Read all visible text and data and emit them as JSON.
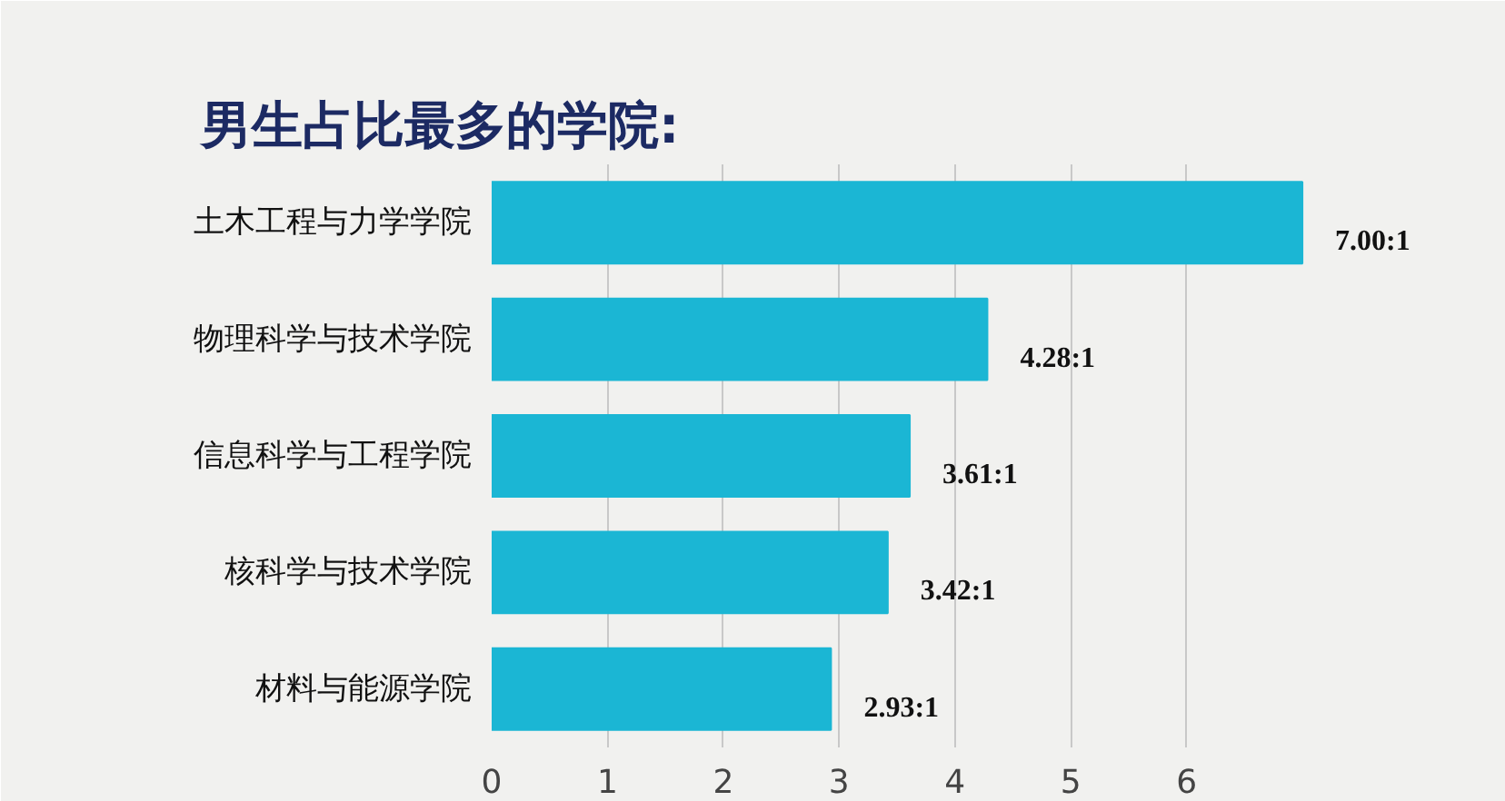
{
  "chart_data": {
    "type": "bar",
    "orientation": "horizontal",
    "title": "男生占比最多的学院:",
    "categories": [
      "土木工程与力学学院",
      "物理科学与技术学院",
      "信息科学与工程学院",
      "核科学与技术学院",
      "材料与能源学院"
    ],
    "values": [
      7.0,
      4.28,
      3.61,
      3.42,
      2.93
    ],
    "value_labels": [
      "7.00:1",
      "4.28:1",
      "3.61:1",
      "3.42:1",
      "2.93:1"
    ],
    "color": "#1bb6d4",
    "xlim": [
      0,
      8.6
    ],
    "xticks": [
      0,
      1,
      2,
      3,
      4,
      5,
      6
    ],
    "grid": "x"
  }
}
